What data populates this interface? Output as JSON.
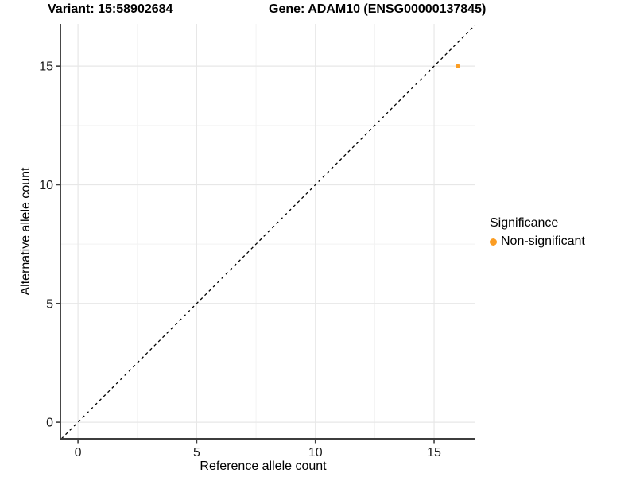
{
  "header": {
    "variant_title": "Variant: 15:58902684",
    "gene_title": "Gene: ADAM10 (ENSG00000137845)"
  },
  "chart_data": {
    "type": "scatter",
    "variant_title": "Variant: 15:58902684",
    "gene_title": "Gene: ADAM10 (ENSG00000137845)",
    "xlabel": "Reference allele count",
    "ylabel": "Alternative allele count",
    "xlim": [
      -0.74,
      16.74
    ],
    "ylim": [
      -0.7,
      16.78
    ],
    "x_ticks": [
      0,
      5,
      10,
      15
    ],
    "y_ticks": [
      0,
      5,
      10,
      15
    ],
    "x_minor_ticks": [
      2.5,
      7.5,
      12.5
    ],
    "y_minor_ticks": [
      2.5,
      7.5,
      12.5
    ],
    "grid": true,
    "identity_line": {
      "style": "dashed",
      "equation": "y = x",
      "color": "#000000"
    },
    "points": [
      {
        "x": 16,
        "y": 15,
        "series": "Non-significant"
      }
    ],
    "legend": {
      "title": "Significance",
      "position": "right",
      "entries": [
        {
          "label": "Non-significant",
          "color": "#FB9D23"
        }
      ]
    },
    "style": {
      "point_color": "#FB9D23",
      "axis_color": "#3E3E3E",
      "grid_major_color": "#E7E7E7",
      "grid_minor_color": "#F2F2F2",
      "tick_label_color": "#1A1A1A",
      "background": "#FFFFFF"
    }
  }
}
